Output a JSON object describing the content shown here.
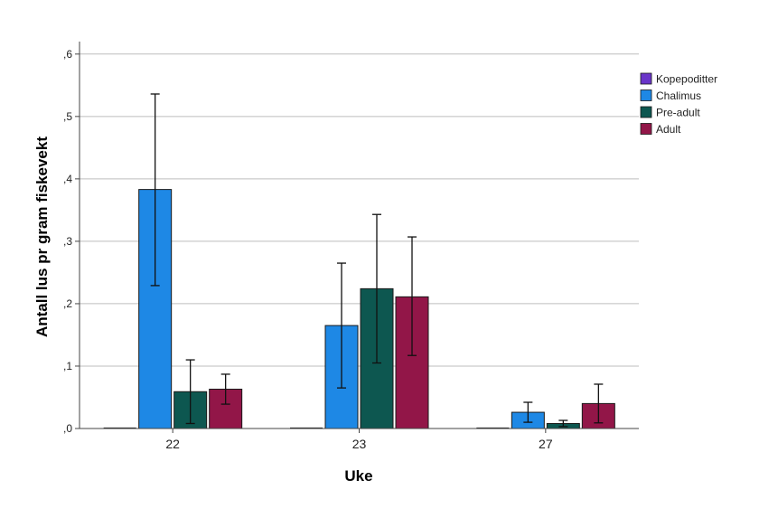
{
  "chart_data": {
    "type": "bar",
    "xlabel": "Uke",
    "ylabel": "Antall lus pr gram fiskevekt",
    "ylim": [
      0,
      0.62
    ],
    "yticks": [
      ",0",
      ",1",
      ",2",
      ",3",
      ",4",
      ",5",
      ",6"
    ],
    "ytick_values": [
      0,
      0.1,
      0.2,
      0.3,
      0.4,
      0.5,
      0.6
    ],
    "grid": true,
    "legend_position": "top-right",
    "categories": [
      "22",
      "23",
      "27"
    ],
    "series": [
      {
        "name": "Kopepoditter",
        "color": "#6a35c9",
        "values": [
          0.0,
          0.0,
          0.0
        ],
        "err_low": [
          0.0,
          0.0,
          0.0
        ],
        "err_high": [
          0.0,
          0.0,
          0.0
        ]
      },
      {
        "name": "Chalimus",
        "color": "#1e88e5",
        "values": [
          0.383,
          0.165,
          0.026
        ],
        "err_low": [
          0.229,
          0.065,
          0.01
        ],
        "err_high": [
          0.536,
          0.265,
          0.042
        ]
      },
      {
        "name": "Pre-adult",
        "color": "#0d5750",
        "values": [
          0.059,
          0.224,
          0.008
        ],
        "err_low": [
          0.008,
          0.105,
          0.003
        ],
        "err_high": [
          0.11,
          0.343,
          0.013
        ]
      },
      {
        "name": "Adult",
        "color": "#921648",
        "values": [
          0.063,
          0.211,
          0.04
        ],
        "err_low": [
          0.039,
          0.117,
          0.009
        ],
        "err_high": [
          0.087,
          0.307,
          0.071
        ]
      }
    ]
  }
}
